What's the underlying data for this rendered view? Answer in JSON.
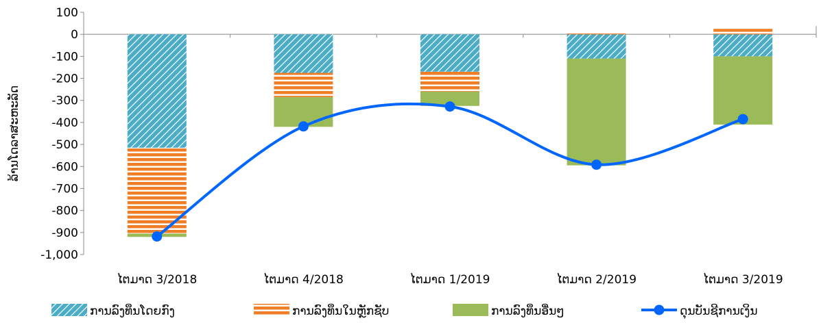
{
  "chart_data": {
    "type": "bar",
    "stacked": true,
    "categories": [
      "ໄຕມາດ 3/2018",
      "ໄຕມາດ 4/2018",
      "ໄຕມາດ 1/2019",
      "ໄຕມາດ 2/2019",
      "ໄຕມາດ 3/2019"
    ],
    "ylabel": "ລ້ານໂດລາສະຫະລັດ",
    "ylim": [
      -1000,
      100
    ],
    "yticks": [
      100,
      0,
      -100,
      -200,
      -300,
      -400,
      -500,
      -600,
      -700,
      -800,
      -900,
      -1000
    ],
    "ytick_labels": [
      "100",
      "0",
      "-100",
      "-200",
      "-300",
      "-400",
      "-500",
      "-600",
      "-700",
      "-800",
      "-900",
      "-1,000"
    ],
    "grid": false,
    "legend_position": "bottom",
    "series": [
      {
        "name": "ການລົງທຶນໂດຍກົງ",
        "kind": "bar",
        "pattern": "diagonal-stripes",
        "color": "#4bacc6",
        "values": [
          -515,
          -175,
          -170,
          -110,
          -100
        ]
      },
      {
        "name": "ການລົງທຶນໃນຫຼັກຊັບ",
        "kind": "bar",
        "pattern": "horizontal-stripes",
        "color": "#f07e26",
        "values": [
          -390,
          -110,
          -90,
          8,
          25
        ]
      },
      {
        "name": "ການລົງທຶນອື່ນໆ",
        "kind": "bar",
        "pattern": "solid",
        "color": "#9bbb59",
        "values": [
          -15,
          -135,
          -65,
          -485,
          -310
        ]
      },
      {
        "name": "ດຸນບັນຊີການເງິນ",
        "kind": "line",
        "smooth": true,
        "color": "#0066ff",
        "values": [
          -918,
          -418,
          -328,
          -592,
          -385
        ]
      }
    ]
  }
}
